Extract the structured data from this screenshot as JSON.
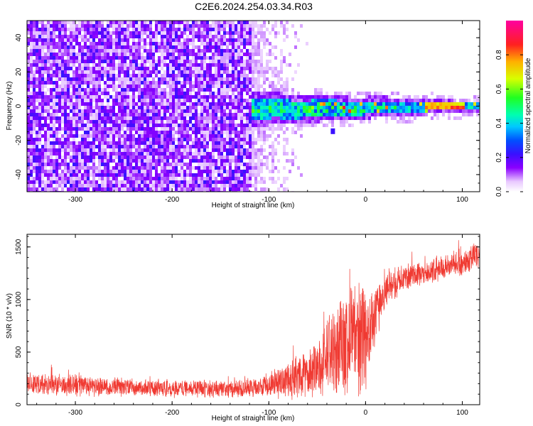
{
  "title": "C2E6.2024.254.03.34.R03",
  "chart_data": [
    {
      "type": "heatmap",
      "xlabel": "Height of straight line (km)",
      "ylabel": "Frequency (Hz)",
      "xlim": [
        -350,
        118
      ],
      "ylim": [
        -50,
        50
      ],
      "x_ticks": [
        -300,
        -200,
        -100,
        0,
        100
      ],
      "y_ticks": [
        -40,
        -20,
        0,
        20,
        40
      ],
      "colorbar": {
        "label": "Normalized spectral amplitude",
        "range": [
          0,
          1
        ],
        "ticks": [
          0.0,
          0.2,
          0.4,
          0.6,
          0.8
        ],
        "colormap": "rainbow-hsv"
      },
      "features": {
        "noise_region_x": [
          -350,
          -55
        ],
        "noise_cutoff_x": -120,
        "signal_band": {
          "x": [
            -118,
            118
          ],
          "freq_center": 1,
          "width_near_start": 10,
          "width_near_end": 3
        },
        "peak_amplitude_x": [
          60,
          100
        ]
      }
    },
    {
      "type": "line",
      "xlabel": "Height of straight line (km)",
      "ylabel": "SNR (10 * v/v)",
      "xlim": [
        -350,
        118
      ],
      "ylim": [
        0,
        1620
      ],
      "x_ticks": [
        -300,
        -200,
        -100,
        0,
        100
      ],
      "y_ticks": [
        0,
        500,
        1000,
        1500
      ],
      "series_color": "#f03a32",
      "envelope": [
        {
          "x": -350,
          "mean": 200,
          "spread": 90
        },
        {
          "x": -300,
          "mean": 185,
          "spread": 90
        },
        {
          "x": -250,
          "mean": 165,
          "spread": 75
        },
        {
          "x": -200,
          "mean": 155,
          "spread": 70
        },
        {
          "x": -150,
          "mean": 150,
          "spread": 70
        },
        {
          "x": -110,
          "mean": 160,
          "spread": 80
        },
        {
          "x": -80,
          "mean": 230,
          "spread": 140
        },
        {
          "x": -55,
          "mean": 330,
          "spread": 220
        },
        {
          "x": -35,
          "mean": 500,
          "spread": 380
        },
        {
          "x": -15,
          "mean": 620,
          "spread": 450
        },
        {
          "x": 0,
          "mean": 660,
          "spread": 500
        },
        {
          "x": 10,
          "mean": 850,
          "spread": 260
        },
        {
          "x": 20,
          "mean": 1100,
          "spread": 160
        },
        {
          "x": 40,
          "mean": 1210,
          "spread": 110
        },
        {
          "x": 70,
          "mean": 1270,
          "spread": 100
        },
        {
          "x": 100,
          "mean": 1360,
          "spread": 110
        },
        {
          "x": 118,
          "mean": 1430,
          "spread": 120
        }
      ]
    }
  ]
}
